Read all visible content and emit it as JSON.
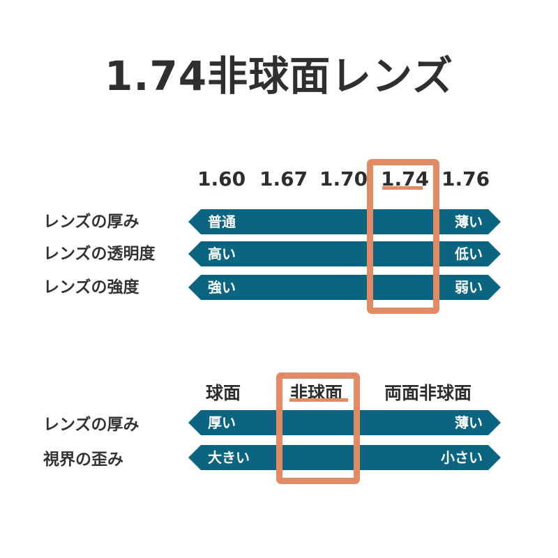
{
  "title": "1.74非球面レンズ",
  "colors": {
    "bar": "#0b6580",
    "highlight": "#e18a64",
    "text": "#333333"
  },
  "index_chart": {
    "columns": [
      "1.60",
      "1.67",
      "1.70",
      "1.74",
      "1.76"
    ],
    "highlighted_column": "1.74",
    "rows": [
      {
        "label": "レンズの厚み",
        "left": "普通",
        "right": "薄い"
      },
      {
        "label": "レンズの透明度",
        "left": "高い",
        "right": "低い"
      },
      {
        "label": "レンズの強度",
        "left": "強い",
        "right": "弱い"
      }
    ]
  },
  "shape_chart": {
    "columns": [
      "球面",
      "非球面",
      "両面非球面"
    ],
    "highlighted_column": "非球面",
    "rows": [
      {
        "label": "レンズの厚み",
        "left": "厚い",
        "right": "薄い"
      },
      {
        "label": "視界の歪み",
        "left": "大きい",
        "right": "小さい"
      }
    ]
  }
}
